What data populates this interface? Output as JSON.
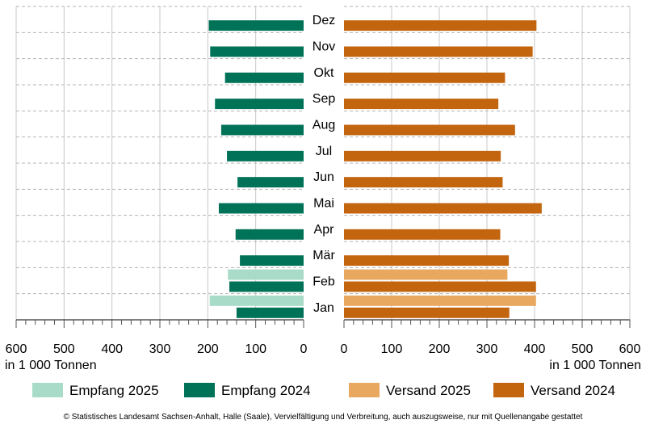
{
  "chart_data": {
    "type": "bar",
    "orientation": "horizontal-butterfly",
    "categories": [
      "Jan",
      "Feb",
      "Mär",
      "Apr",
      "Mai",
      "Jun",
      "Jul",
      "Aug",
      "Sep",
      "Okt",
      "Nov",
      "Dez"
    ],
    "left_panel": {
      "axis_label": "in 1 000 Tonnen",
      "xlim": [
        0,
        600
      ],
      "ticks": [
        600,
        500,
        400,
        300,
        200,
        100,
        0
      ],
      "series": [
        {
          "name": "Empfang 2025",
          "color": "#a8dcc8",
          "values": [
            196,
            158,
            null,
            null,
            null,
            null,
            null,
            null,
            null,
            null,
            null,
            null
          ]
        },
        {
          "name": "Empfang 2024",
          "color": "#007257",
          "values": [
            140,
            155,
            133,
            142,
            177,
            138,
            160,
            172,
            185,
            164,
            195,
            198
          ]
        }
      ]
    },
    "right_panel": {
      "axis_label": "in 1 000 Tonnen",
      "xlim": [
        0,
        600
      ],
      "ticks": [
        0,
        100,
        200,
        300,
        400,
        500,
        600
      ],
      "series": [
        {
          "name": "Versand 2025",
          "color": "#e8a860",
          "values": [
            403,
            343,
            null,
            null,
            null,
            null,
            null,
            null,
            null,
            null,
            null,
            null
          ]
        },
        {
          "name": "Versand 2024",
          "color": "#c3640f",
          "values": [
            347,
            403,
            346,
            328,
            415,
            333,
            329,
            359,
            324,
            338,
            396,
            404
          ]
        }
      ]
    },
    "grid": true
  },
  "legend": [
    {
      "label": "Empfang 2025",
      "color": "#a8dcc8"
    },
    {
      "label": "Empfang 2024",
      "color": "#007257"
    },
    {
      "label": "Versand 2025",
      "color": "#e8a860"
    },
    {
      "label": "Versand 2024",
      "color": "#c3640f"
    }
  ],
  "footer": "© Statistisches Landesamt Sachsen-Anhalt, Halle (Saale), Vervielfältigung und Verbreitung, auch auszugsweise, nur mit Quellenangabe gestattet"
}
